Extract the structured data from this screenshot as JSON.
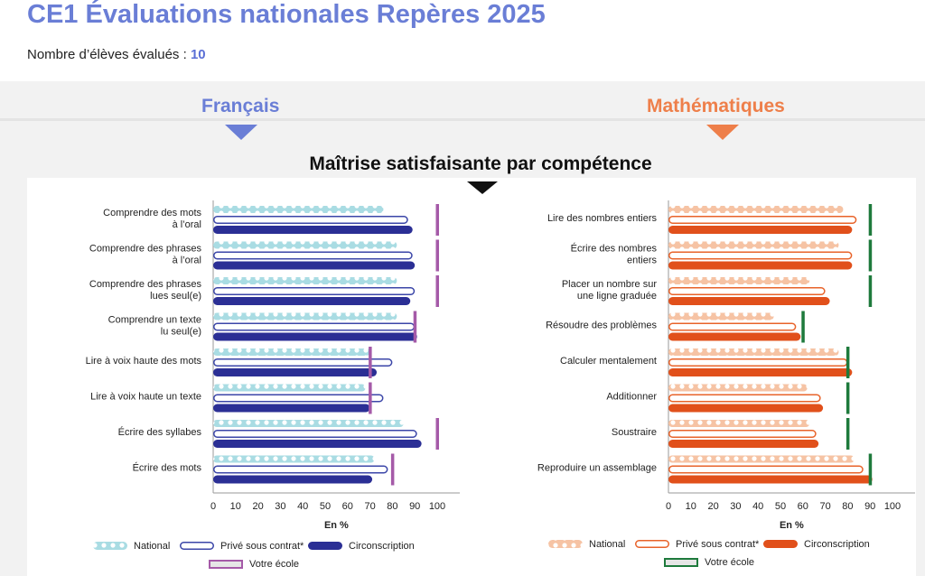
{
  "header": {
    "title": "CE1 Évaluations nationales Repères 2025",
    "students_label": "Nombre d’élèves évalués :",
    "students_count": "10"
  },
  "sections": {
    "francais": "Français",
    "maths": "Mathématiques",
    "competence_title": "Maîtrise satisfaisante par compétence"
  },
  "colors": {
    "fr_national": "#a9dce3",
    "fr_prive": "#3b46a8",
    "fr_circ": "#2b2f95",
    "fr_ecole": "#a55aa8",
    "ma_national": "#f6c3a4",
    "ma_prive": "#e8632a",
    "ma_circ": "#e1501b",
    "ma_ecole": "#1e7a3c"
  },
  "chart_data": [
    {
      "type": "bar",
      "title": "Français",
      "xlabel": "En %",
      "xlim": [
        0,
        100
      ],
      "xticks": [
        "0",
        "10",
        "20",
        "30",
        "40",
        "50",
        "60",
        "70",
        "80",
        "90",
        "100"
      ],
      "categories": [
        [
          "Comprendre des mots",
          "à l’oral"
        ],
        [
          "Comprendre des phrases",
          "à l’oral"
        ],
        [
          "Comprendre des phrases",
          "lues seul(e)"
        ],
        [
          "Comprendre un texte",
          "lu seul(e)"
        ],
        [
          "Lire à voix haute des mots"
        ],
        [
          "Lire à voix haute un texte"
        ],
        [
          "Écrire des syllabes"
        ],
        [
          "Écrire des mots"
        ]
      ],
      "series": [
        {
          "name": "National",
          "values": [
            76,
            82,
            82,
            82,
            70,
            68,
            85,
            72
          ]
        },
        {
          "name": "Privé sous contrat*",
          "values": [
            87,
            89,
            90,
            90,
            80,
            76,
            91,
            78
          ]
        },
        {
          "name": "Circonscription",
          "values": [
            89,
            90,
            88,
            91,
            73,
            70,
            93,
            71
          ]
        },
        {
          "name": "Votre école",
          "values": [
            100,
            100,
            100,
            90,
            70,
            70,
            100,
            80
          ]
        }
      ],
      "legend": [
        "National",
        "Privé sous contrat*",
        "Circonscription",
        "Votre école"
      ]
    },
    {
      "type": "bar",
      "title": "Mathématiques",
      "xlabel": "En %",
      "xlim": [
        0,
        100
      ],
      "xticks": [
        "0",
        "10",
        "20",
        "30",
        "40",
        "50",
        "60",
        "70",
        "80",
        "90",
        "100"
      ],
      "categories": [
        [
          "Lire des nombres entiers"
        ],
        [
          "Écrire des nombres",
          "entiers"
        ],
        [
          "Placer un nombre sur",
          "une ligne graduée"
        ],
        [
          "Résoudre des problèmes"
        ],
        [
          "Calculer mentalement"
        ],
        [
          "Additionner"
        ],
        [
          "Soustraire"
        ],
        [
          "Reproduire un assemblage"
        ]
      ],
      "series": [
        {
          "name": "National",
          "values": [
            78,
            76,
            63,
            47,
            76,
            62,
            63,
            83
          ]
        },
        {
          "name": "Privé sous contrat*",
          "values": [
            84,
            82,
            70,
            57,
            80,
            68,
            66,
            87
          ]
        },
        {
          "name": "Circonscription",
          "values": [
            82,
            82,
            72,
            59,
            82,
            69,
            67,
            91
          ]
        },
        {
          "name": "Votre école",
          "values": [
            90,
            90,
            90,
            60,
            80,
            80,
            80,
            90
          ]
        }
      ],
      "legend": [
        "National",
        "Privé sous contrat*",
        "Circonscription",
        "Votre école"
      ]
    }
  ]
}
